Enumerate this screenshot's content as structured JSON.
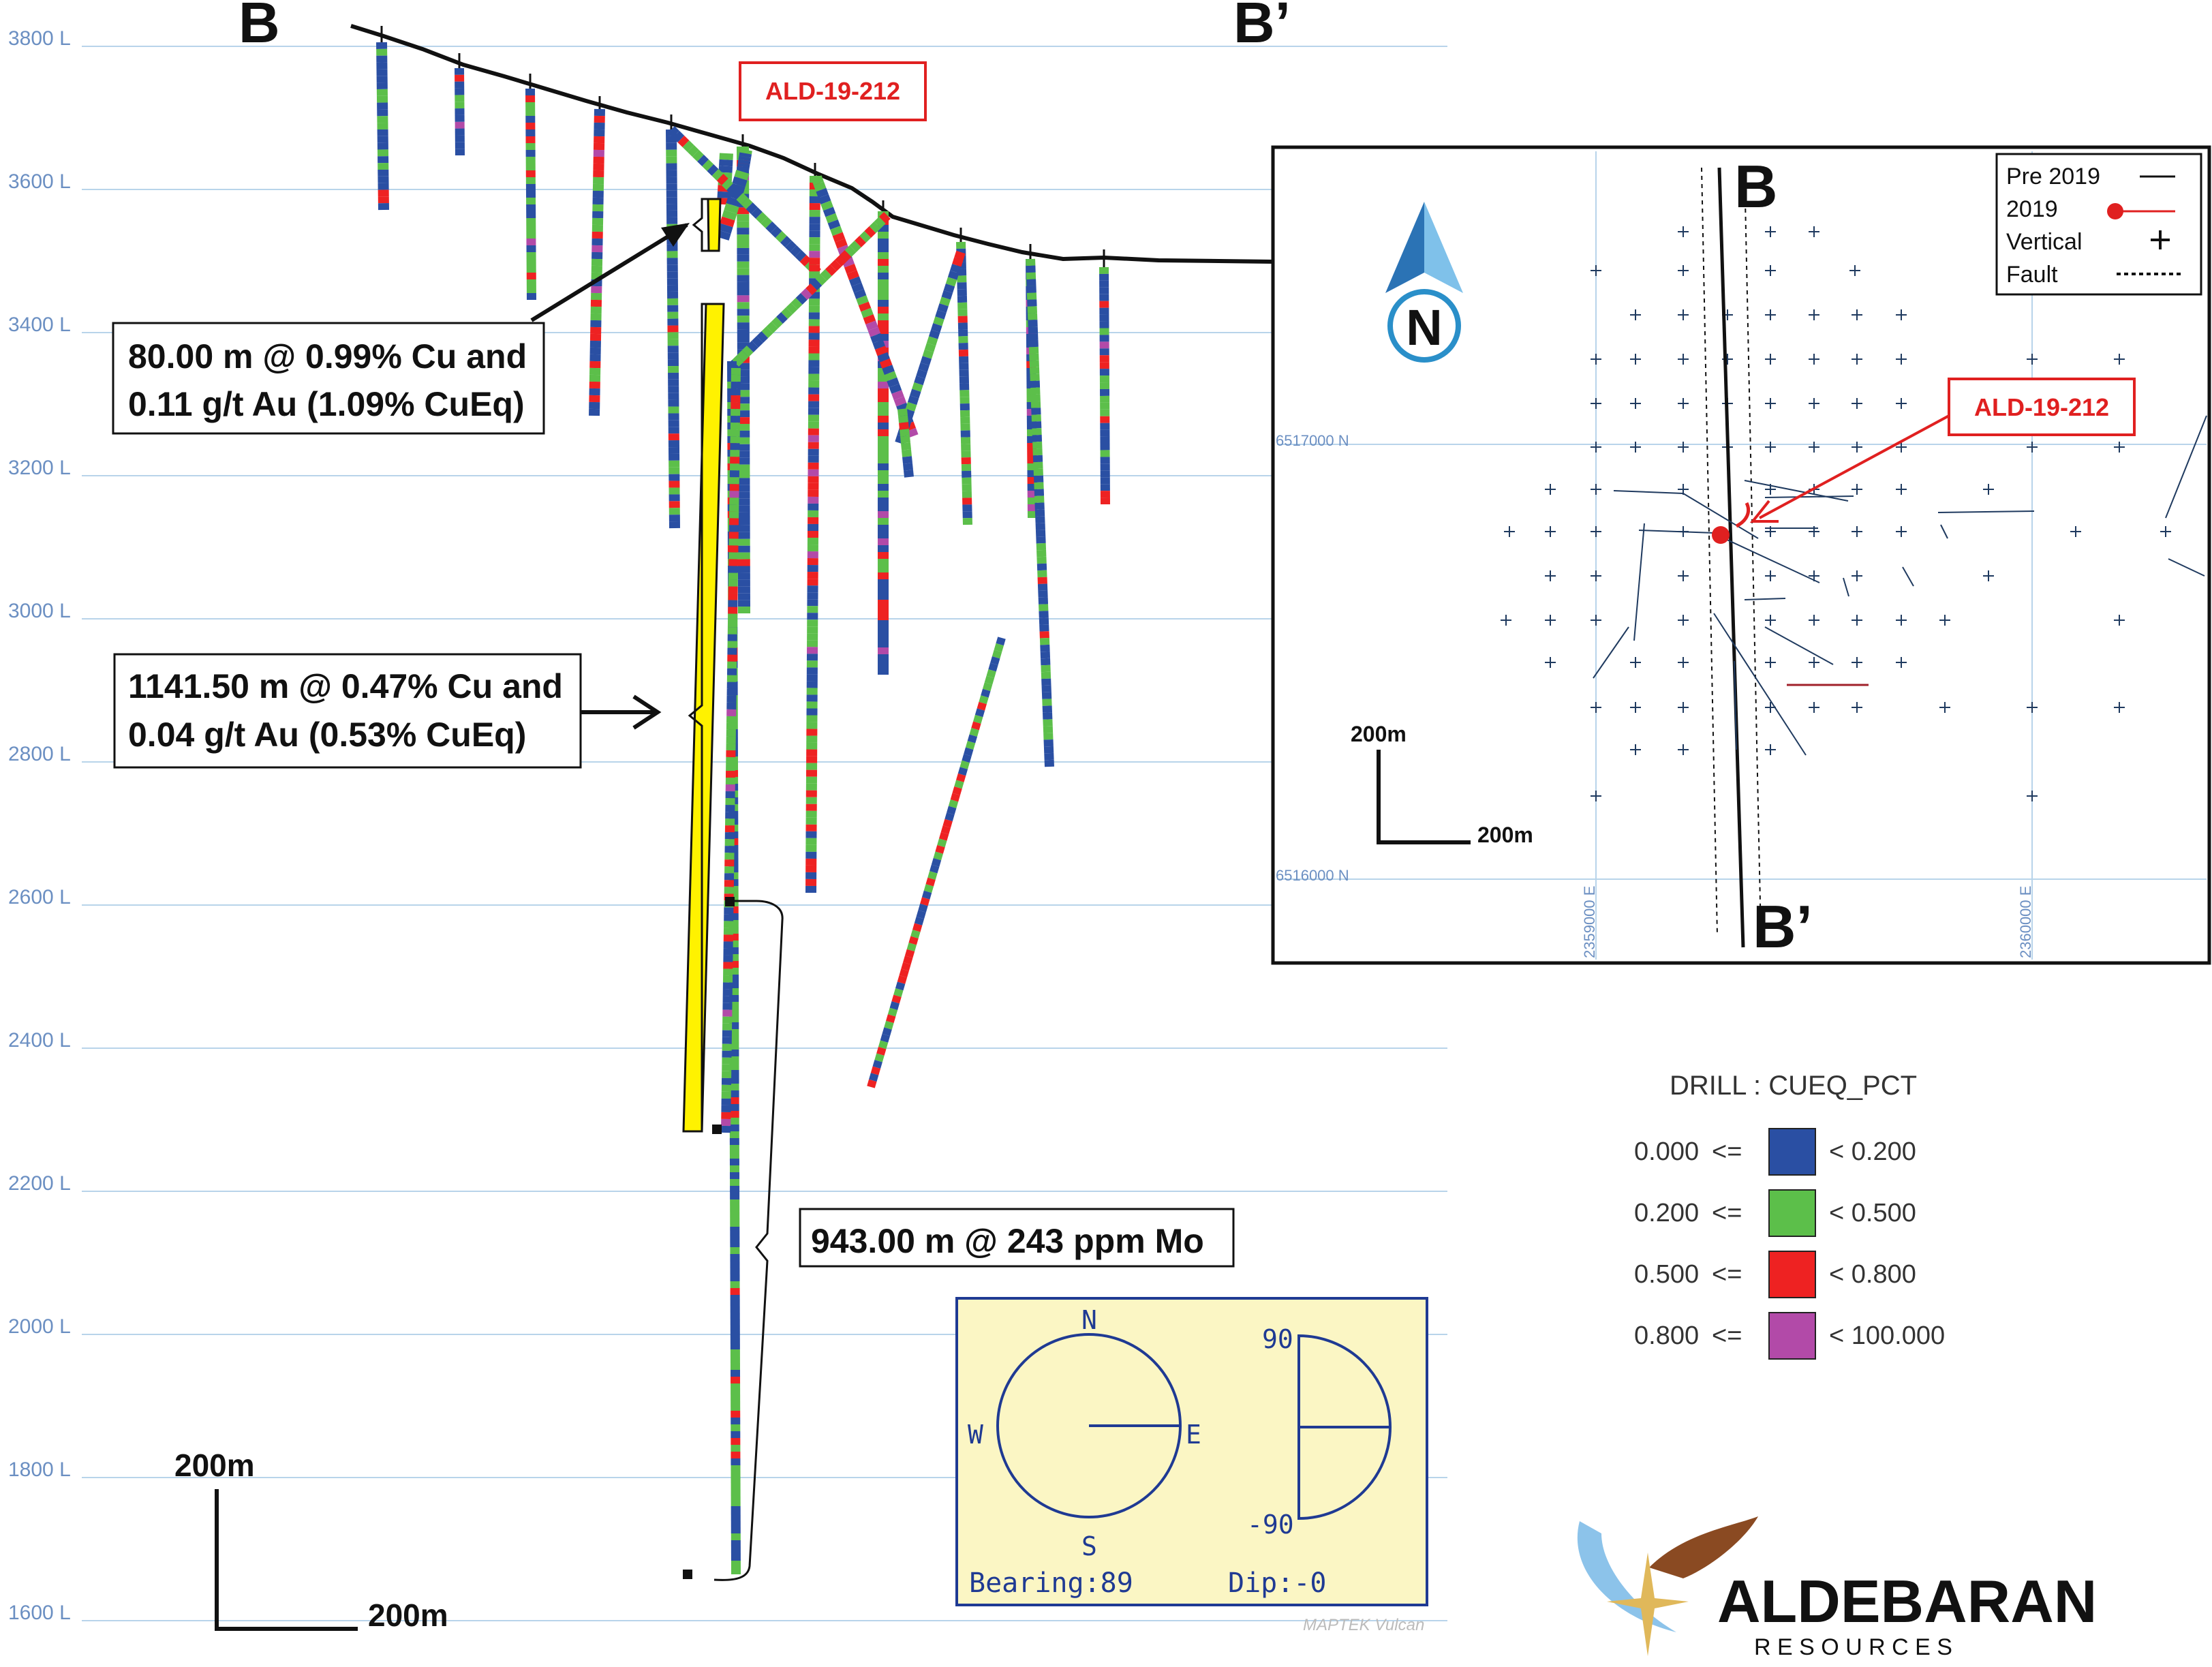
{
  "section": {
    "label_left": "B",
    "label_right": "B’",
    "hole_label": "ALD-19-212",
    "levels": [
      "3800 L",
      "3600 L",
      "3400 L",
      "3200 L",
      "3000 L",
      "2800 L",
      "2600 L",
      "2400 L",
      "2200 L",
      "2000 L",
      "1800 L",
      "1600 L"
    ],
    "intercepts": [
      {
        "line1": "80.00 m @ 0.99% Cu and",
        "line2": "0.11 g/t Au (1.09% CuEq)"
      },
      {
        "line1": "1141.50 m @ 0.47% Cu and",
        "line2": "0.04 g/t Au (0.53% CuEq)"
      },
      {
        "line1": "943.00 m @ 243 ppm Mo"
      }
    ],
    "scale_vertical": "200m",
    "scale_horizontal": "200m"
  },
  "inset_map": {
    "label_top": "B",
    "label_bottom": "B’",
    "north": "N",
    "hole_label": "ALD-19-212",
    "legend": {
      "pre2019": "Pre 2019",
      "y2019": "2019",
      "vertical": "Vertical",
      "fault": "Fault"
    },
    "scale_vertical": "200m",
    "scale_horizontal": "200m",
    "northing_1": "6517000 N",
    "northing_2": "6516000 N",
    "easting_1": "2359000 E",
    "easting_2": "2360000 E"
  },
  "drill_legend": {
    "title": "DRILL : CUEQ_PCT",
    "items": [
      {
        "lower": "0.000",
        "op": "<=",
        "upper": "< 0.200",
        "color": "#2a4fa3"
      },
      {
        "lower": "0.200",
        "op": "<=",
        "upper": "< 0.500",
        "color": "#5cbf4a"
      },
      {
        "lower": "0.500",
        "op": "<=",
        "upper": "< 0.800",
        "color": "#ee2222"
      },
      {
        "lower": "0.800",
        "op": "<=",
        "upper": "< 100.000",
        "color": "#b24aa8"
      }
    ]
  },
  "orientation": {
    "compass_n": "N",
    "compass_s": "S",
    "compass_e": "E",
    "compass_w": "W",
    "dip_top": "90",
    "dip_bottom": "-90",
    "bearing": "Bearing:89",
    "dip": "Dip:-0",
    "watermark": "MAPTEK Vulcan"
  },
  "logo": {
    "name": "ALDEBARAN",
    "sub": "R E S O U R C E S"
  },
  "colors": {
    "blue": "#2a4fa3",
    "green": "#5cbf4a",
    "red": "#ee2222",
    "magenta": "#b24aa8",
    "highlight": "#fff200",
    "level_line": "#b8d4ea",
    "label_red": "#e02020",
    "orient_bg": "#fbf6c4",
    "orient_stroke": "#1f3a93"
  }
}
